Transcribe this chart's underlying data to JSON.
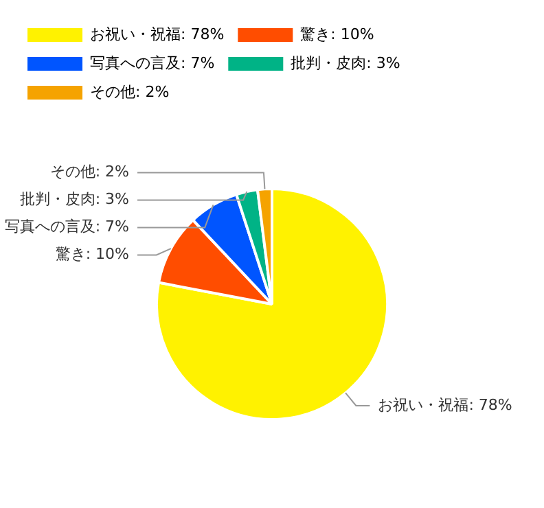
{
  "chart_data": {
    "type": "pie",
    "categories": [
      "お祝い・祝福",
      "驚き",
      "写真への言及",
      "批判・皮肉",
      "その他"
    ],
    "values": [
      78,
      10,
      7,
      3,
      2
    ],
    "value_labels": [
      "78%",
      "10%",
      "7%",
      "3%",
      "2%"
    ],
    "colors": [
      "#fff200",
      "#ff4d00",
      "#0055ff",
      "#00b386",
      "#f5a300"
    ],
    "legend": "top left"
  }
}
